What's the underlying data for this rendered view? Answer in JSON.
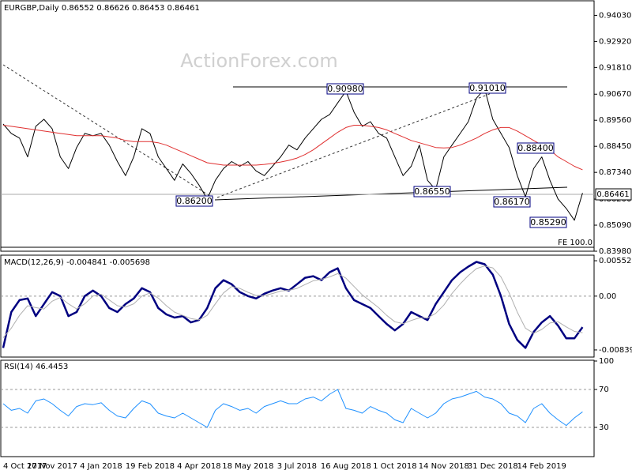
{
  "chart_data": [
    {
      "type": "line",
      "title": "EURGBP,Daily  0.86552 0.86626 0.86453 0.86461",
      "watermark": "ActionForex.com",
      "categories": [
        "4 Oct 2017",
        null,
        null,
        null,
        null,
        null,
        "17 Nov 2017",
        null,
        null,
        null,
        null,
        null,
        "4 Jan 2018",
        null,
        null,
        null,
        null,
        null,
        "19 Feb 2018",
        null,
        null,
        null,
        null,
        null,
        "4 Apr 2018",
        null,
        null,
        null,
        null,
        null,
        "18 May 2018",
        null,
        null,
        null,
        null,
        null,
        "3 Jul 2018",
        null,
        null,
        null,
        null,
        null,
        "16 Aug 2018",
        null,
        null,
        null,
        null,
        null,
        "1 Oct 2018",
        null,
        null,
        null,
        null,
        null,
        "14 Nov 2018",
        null,
        null,
        null,
        null,
        null,
        "31 Dec 2018",
        null,
        null,
        null,
        null,
        null,
        "14 Feb 2019",
        null,
        null,
        null,
        null,
        null
      ],
      "series": [
        {
          "color": "#000000",
          "values": [
            0.894,
            0.89,
            0.888,
            0.88,
            0.893,
            0.896,
            0.892,
            0.88,
            0.875,
            0.884,
            0.89,
            0.889,
            0.89,
            0.885,
            0.878,
            0.872,
            0.88,
            0.892,
            0.89,
            0.88,
            0.875,
            0.87,
            0.877,
            0.873,
            0.868,
            0.862,
            0.87,
            0.875,
            0.878,
            0.876,
            0.878,
            0.874,
            0.872,
            0.876,
            0.88,
            0.885,
            0.883,
            0.888,
            0.892,
            0.896,
            0.898,
            0.903,
            0.908,
            0.899,
            0.893,
            0.895,
            0.89,
            0.888,
            0.88,
            0.872,
            0.876,
            0.885,
            0.87,
            0.866,
            0.88,
            0.885,
            0.89,
            0.895,
            0.905,
            0.909,
            0.896,
            0.89,
            0.884,
            0.872,
            0.863,
            0.875,
            0.88,
            0.87,
            0.862,
            0.858,
            0.853,
            0.8646
          ]
        },
        {
          "color": "#e03030",
          "values": [
            0.8935,
            0.893,
            0.8925,
            0.892,
            0.8915,
            0.891,
            0.8905,
            0.89,
            0.8895,
            0.889,
            0.889,
            0.889,
            0.889,
            0.8885,
            0.888,
            0.887,
            0.8865,
            0.8865,
            0.8865,
            0.886,
            0.885,
            0.8835,
            0.882,
            0.8805,
            0.879,
            0.8775,
            0.877,
            0.8765,
            0.8765,
            0.8765,
            0.8765,
            0.8765,
            0.8768,
            0.8772,
            0.8778,
            0.8785,
            0.8795,
            0.881,
            0.883,
            0.8855,
            0.888,
            0.8905,
            0.8925,
            0.8935,
            0.8935,
            0.893,
            0.8925,
            0.8915,
            0.89,
            0.8885,
            0.887,
            0.886,
            0.885,
            0.884,
            0.8838,
            0.884,
            0.885,
            0.8865,
            0.888,
            0.89,
            0.8915,
            0.8925,
            0.8925,
            0.891,
            0.889,
            0.887,
            0.885,
            0.883,
            0.88,
            0.878,
            0.876,
            0.8745
          ]
        }
      ],
      "ylim": [
        0.8398,
        0.9465
      ],
      "yticks": [
        {
          "value": 0.9403,
          "label": "0.94030"
        },
        {
          "value": 0.9292,
          "label": "0.92920"
        },
        {
          "value": 0.9181,
          "label": "0.91810"
        },
        {
          "value": 0.9067,
          "label": "0.90670"
        },
        {
          "value": 0.8956,
          "label": "0.89560"
        },
        {
          "value": 0.8845,
          "label": "0.88450"
        },
        {
          "value": 0.8734,
          "label": "0.87340"
        },
        {
          "value": 0.862,
          "label": "0.86200"
        },
        {
          "value": 0.8509,
          "label": "0.85090"
        },
        {
          "value": 0.8398,
          "label": "0.83980"
        }
      ],
      "grid": false,
      "annotations": [
        "0.90980",
        "0.91010",
        "0.88400",
        "0.86550",
        "0.86170",
        "0.86200",
        "0.85290"
      ],
      "fe_label": "FE 100.0",
      "current_price": "0.86461"
    },
    {
      "type": "line",
      "title": "MACD(12,26,9) -0.004841 -0.005698",
      "series": [
        {
          "color": "#000080",
          "width": 2.5,
          "values": [
            -0.00808,
            -0.00249,
            -0.00062,
            -0.00037,
            -0.00311,
            -0.00124,
            0.00062,
            0,
            -0.00311,
            -0.00249,
            0,
            0.00087,
            0,
            -0.00186,
            -0.00249,
            -0.00124,
            -0.00037,
            0.00124,
            0.00062,
            -0.00186,
            -0.00286,
            -0.00335,
            -0.00311,
            -0.0041,
            -0.00373,
            -0.00186,
            0.00124,
            0.00249,
            0.00186,
            0.00062,
            0,
            -0.00037,
            0.00037,
            0.00087,
            0.00124,
            0.00087,
            0.00186,
            0.00286,
            0.00311,
            0.00249,
            0.00373,
            0.00435,
            0.00124,
            -0.00062,
            -0.00124,
            -0.00186,
            -0.00311,
            -0.00435,
            -0.00534,
            -0.00435,
            -0.00249,
            -0.00311,
            -0.00373,
            -0.00124,
            0.00062,
            0.00249,
            0.00373,
            0.0046,
            0.00534,
            0.00497,
            0.00335,
            0,
            -0.00435,
            -0.00683,
            -0.00808,
            -0.00559,
            -0.0041,
            -0.00311,
            -0.0046,
            -0.00659,
            -0.00659,
            -0.004841
          ]
        },
        {
          "color": "#b0b0b0",
          "width": 1,
          "values": [
            -0.0065,
            -0.005,
            -0.003,
            -0.0015,
            -0.0018,
            -0.002,
            -0.0008,
            -0.0002,
            -0.0012,
            -0.002,
            -0.0012,
            0,
            0.0003,
            -0.0006,
            -0.0015,
            -0.0017,
            -0.0012,
            0,
            0.0005,
            -0.0003,
            -0.0015,
            -0.0025,
            -0.003,
            -0.0035,
            -0.0037,
            -0.003,
            -0.0012,
            0.0005,
            0.0015,
            0.0012,
            0.0006,
            0.0001,
            0.0001,
            0.0004,
            0.0008,
            0.0009,
            0.0012,
            0.0018,
            0.0024,
            0.0026,
            0.003,
            0.0035,
            0.0028,
            0.0015,
            0.0002,
            -0.0008,
            -0.0018,
            -0.003,
            -0.004,
            -0.0043,
            -0.0038,
            -0.0034,
            -0.0034,
            -0.0027,
            -0.0014,
            0.0004,
            0.0019,
            0.0032,
            0.0043,
            0.0047,
            0.0044,
            0.003,
            0.0005,
            -0.0025,
            -0.005,
            -0.0058,
            -0.0052,
            -0.0042,
            -0.004,
            -0.0048,
            -0.0055,
            -0.005698
          ]
        }
      ],
      "ylim": [
        -0.00951,
        0.00639
      ],
      "yticks": [
        0.005521,
        {
          "value": 0,
          "label": "0.00"
        },
        -0.008395
      ],
      "zero_line": true,
      "grid": false
    },
    {
      "type": "line",
      "title": "RSI(14) 46.4453",
      "series": [
        {
          "color": "#1e90ff",
          "width": 1,
          "values": [
            55,
            48,
            50,
            45,
            58,
            60,
            55,
            48,
            42,
            52,
            55,
            54,
            56,
            48,
            42,
            40,
            50,
            58,
            55,
            45,
            42,
            40,
            45,
            40,
            35,
            30,
            48,
            55,
            52,
            48,
            50,
            45,
            52,
            55,
            58,
            55,
            55,
            60,
            62,
            58,
            65,
            70,
            50,
            48,
            45,
            52,
            48,
            45,
            38,
            35,
            50,
            45,
            40,
            45,
            55,
            60,
            62,
            65,
            68,
            62,
            60,
            55,
            45,
            42,
            35,
            50,
            55,
            45,
            38,
            32,
            40,
            46.4453
          ]
        }
      ],
      "ylim": [
        0,
        100
      ],
      "yticks": [
        100,
        70,
        30
      ],
      "grid": true
    }
  ]
}
